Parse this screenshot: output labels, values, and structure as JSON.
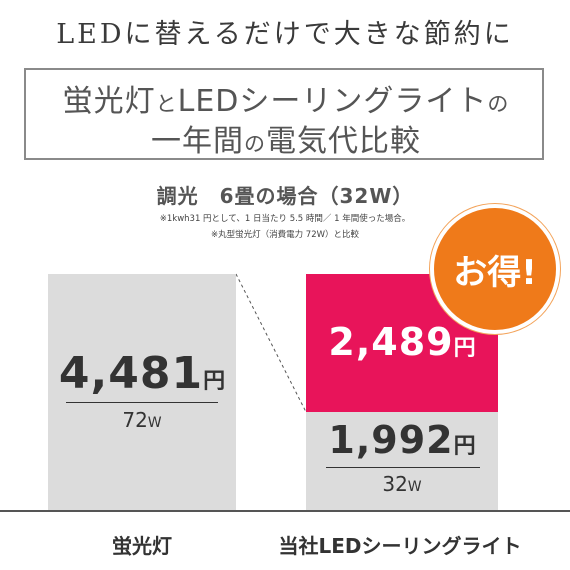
{
  "headline": "LEDに替えるだけで大きな節約に",
  "title": {
    "line1_a": "蛍光灯",
    "line1_b": "と",
    "line1_c": "LEDシーリングライト",
    "line1_d": "の",
    "line2_a": "一年間",
    "line2_b": "の",
    "line2_c": "電気代比較"
  },
  "condition": "調光　6畳の場合（32W）",
  "notes": [
    "※1kwh31 円として、1 日当たり 5.5 時間／ 1 年間使った場合。",
    "※丸型蛍光灯（消費電力 72W）と比較"
  ],
  "badge": "お得!",
  "fluorescent": {
    "cost": "4,481",
    "yen": "円",
    "watt": "72",
    "watt_unit": "W",
    "label": "蛍光灯"
  },
  "led": {
    "saving": "2,489",
    "saving_yen": "円",
    "cost": "1,992",
    "yen": "円",
    "watt": "32",
    "watt_unit": "W",
    "label": "当社LEDシーリングライト"
  },
  "colors": {
    "gray_bar": "#dcdcdc",
    "saving_bar": "#e8145a",
    "badge": "#ef7a1a",
    "text": "#333333"
  }
}
